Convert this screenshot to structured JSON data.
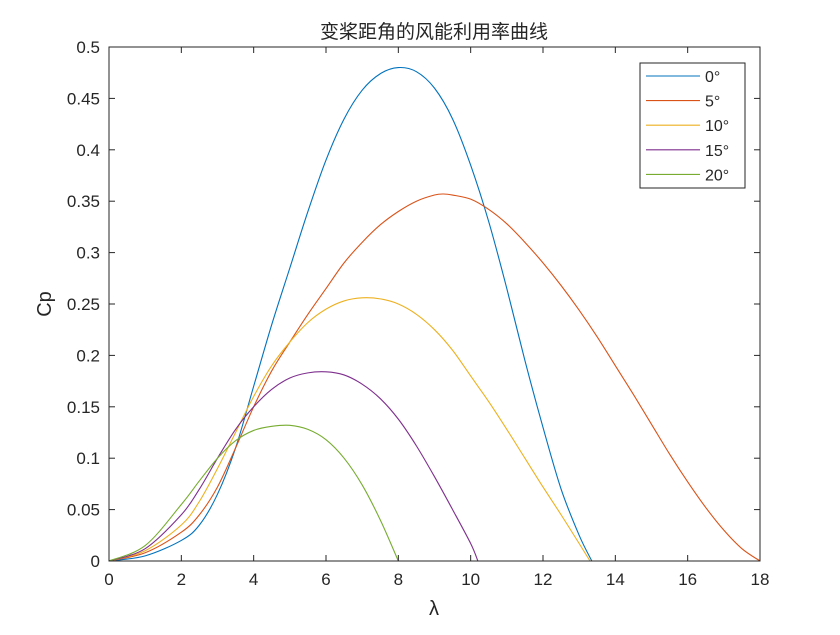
{
  "chart_data": {
    "type": "line",
    "title": "变桨距角的风能利用率曲线",
    "xlabel": "λ",
    "ylabel": "Cp",
    "xlim": [
      0,
      18
    ],
    "ylim": [
      0,
      0.5
    ],
    "xticks": [
      "0",
      "2",
      "4",
      "6",
      "8",
      "10",
      "12",
      "14",
      "16",
      "18"
    ],
    "yticks": [
      "0",
      "0.05",
      "0.1",
      "0.15",
      "0.2",
      "0.25",
      "0.3",
      "0.35",
      "0.4",
      "0.45",
      "0.5"
    ],
    "legend_position": "top-right",
    "grid": false,
    "series": [
      {
        "name": "0°",
        "color": "#0072BD",
        "x": [
          0,
          1,
          2,
          2.5,
          3,
          3.5,
          4,
          4.5,
          5,
          5.5,
          6,
          6.5,
          7,
          7.5,
          8,
          8.5,
          9,
          9.5,
          10,
          10.5,
          11,
          11.5,
          12,
          12.5,
          13,
          13.35
        ],
        "y": [
          0,
          0.005,
          0.02,
          0.035,
          0.065,
          0.11,
          0.17,
          0.23,
          0.285,
          0.34,
          0.39,
          0.43,
          0.458,
          0.474,
          0.48,
          0.476,
          0.46,
          0.43,
          0.385,
          0.33,
          0.265,
          0.195,
          0.13,
          0.07,
          0.025,
          0
        ]
      },
      {
        "name": "5°",
        "color": "#D95319",
        "x": [
          0,
          1,
          2,
          2.5,
          3,
          3.5,
          4,
          4.5,
          5,
          5.5,
          6,
          6.5,
          7,
          7.5,
          8,
          8.5,
          9,
          9.25,
          9.5,
          10,
          10.5,
          11,
          11.5,
          12,
          12.5,
          13,
          13.5,
          14,
          14.5,
          15,
          15.5,
          16,
          16.5,
          17,
          17.5,
          18
        ],
        "y": [
          0,
          0.008,
          0.028,
          0.045,
          0.072,
          0.11,
          0.15,
          0.185,
          0.213,
          0.24,
          0.265,
          0.29,
          0.31,
          0.327,
          0.34,
          0.35,
          0.356,
          0.357,
          0.356,
          0.352,
          0.342,
          0.328,
          0.31,
          0.29,
          0.268,
          0.244,
          0.218,
          0.19,
          0.162,
          0.133,
          0.104,
          0.077,
          0.052,
          0.03,
          0.012,
          0
        ]
      },
      {
        "name": "10°",
        "color": "#EDB120",
        "x": [
          0,
          1,
          2,
          2.5,
          3,
          3.5,
          4,
          4.5,
          5,
          5.5,
          6,
          6.5,
          7,
          7.5,
          8,
          8.5,
          9,
          9.5,
          10,
          10.5,
          11,
          11.5,
          12,
          12.5,
          13,
          13.3
        ],
        "y": [
          0,
          0.01,
          0.035,
          0.058,
          0.09,
          0.125,
          0.16,
          0.19,
          0.213,
          0.232,
          0.245,
          0.253,
          0.256,
          0.255,
          0.25,
          0.24,
          0.225,
          0.205,
          0.18,
          0.155,
          0.128,
          0.1,
          0.072,
          0.045,
          0.017,
          0
        ]
      },
      {
        "name": "15°",
        "color": "#7E2F8E",
        "x": [
          0,
          1,
          2,
          2.5,
          3,
          3.5,
          4,
          4.5,
          5,
          5.5,
          6,
          6.5,
          7,
          7.5,
          8,
          8.5,
          9,
          9.5,
          10,
          10.2
        ],
        "y": [
          0,
          0.012,
          0.045,
          0.07,
          0.1,
          0.128,
          0.15,
          0.167,
          0.178,
          0.183,
          0.184,
          0.181,
          0.172,
          0.158,
          0.138,
          0.112,
          0.082,
          0.05,
          0.017,
          0
        ]
      },
      {
        "name": "20°",
        "color": "#77AC30",
        "x": [
          0,
          1,
          2,
          2.5,
          3,
          3.5,
          4,
          4.5,
          5,
          5.5,
          6,
          6.5,
          7,
          7.5,
          8
        ],
        "y": [
          0,
          0.015,
          0.055,
          0.078,
          0.1,
          0.117,
          0.127,
          0.131,
          0.132,
          0.128,
          0.118,
          0.1,
          0.074,
          0.04,
          0
        ]
      }
    ]
  }
}
